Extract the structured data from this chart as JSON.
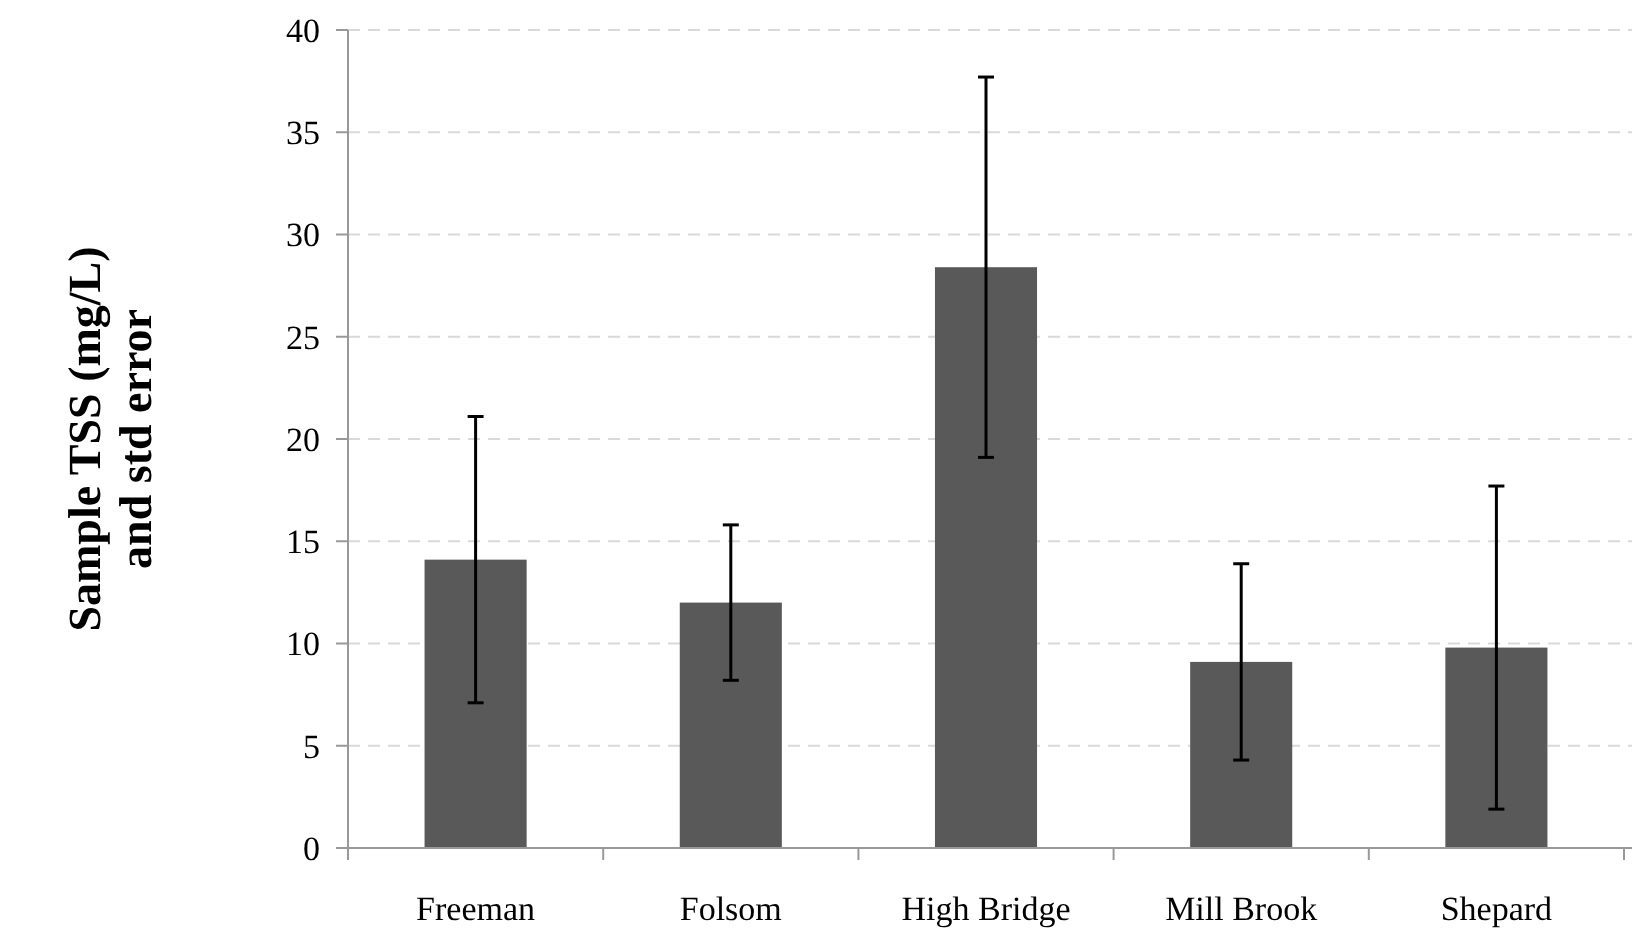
{
  "chart_data": {
    "type": "bar",
    "ylabel": "Sample TSS (mg/L)\nand std error",
    "categories": [
      "Freeman",
      "Folsom",
      "High Bridge",
      "Mill Brook",
      "Shepard"
    ],
    "values": [
      14.1,
      12.0,
      28.4,
      9.1,
      9.8
    ],
    "errors": [
      7.0,
      3.8,
      9.3,
      4.8,
      7.9
    ],
    "color": "#595959",
    "ylim": [
      0,
      40
    ],
    "yticks": [
      0,
      5,
      10,
      15,
      20,
      25,
      30,
      35,
      40
    ],
    "grid": "y"
  }
}
